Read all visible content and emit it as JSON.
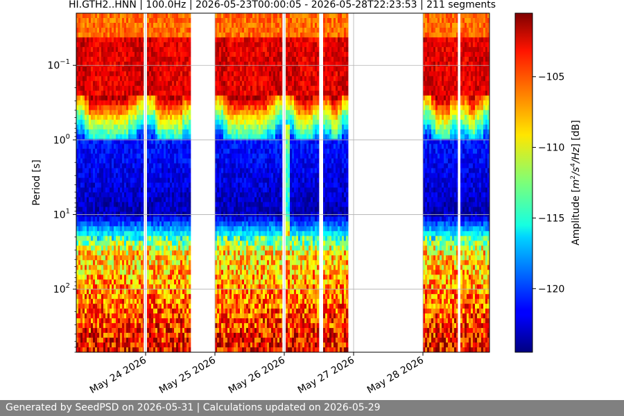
{
  "chart_data": {
    "type": "heatmap",
    "title": "HI.GTH2..HNN | 100.0Hz | 2026-05-23T00:00:05 - 2026-05-28T22:23:53 | 211 segments",
    "ylabel": "Period [s]",
    "y_scale": "log",
    "y_inverted": true,
    "ylim": [
      0.02,
      700
    ],
    "y_ticks": [
      {
        "value": 0.1,
        "base": "10",
        "exp": "−1"
      },
      {
        "value": 1,
        "base": "10",
        "exp": "0"
      },
      {
        "value": 10,
        "base": "10",
        "exp": "1"
      },
      {
        "value": 100,
        "base": "10",
        "exp": "2"
      }
    ],
    "x_ticks": [
      "May 24 2026",
      "May 25 2026",
      "May 26 2026",
      "May 27 2026",
      "May 28 2026"
    ],
    "xlim_days": [
      23.0,
      28.96
    ],
    "grid": true,
    "colormap": "jet",
    "colorbar": {
      "label": "Amplitude [m²/s⁴/Hz] [dB]",
      "label_plain": "Amplitude [",
      "label_unit_m": "m",
      "label_unit_sup1": "2",
      "label_unit_s": "/s",
      "label_unit_sup2": "4",
      "label_unit_hz": "/Hz",
      "label_end": "] [dB]",
      "range": [
        -124.5,
        -100.5
      ],
      "ticks": [
        {
          "value": -105,
          "label": "−105"
        },
        {
          "value": -110,
          "label": "−110"
        },
        {
          "value": -115,
          "label": "−115"
        },
        {
          "value": -120,
          "label": "−120"
        }
      ]
    },
    "data_segments_days": [
      [
        23.0,
        23.97
      ],
      [
        24.02,
        24.65
      ],
      [
        25.0,
        25.97
      ],
      [
        26.02,
        26.5
      ],
      [
        26.56,
        26.92
      ],
      [
        28.0,
        28.5
      ],
      [
        28.54,
        28.96
      ]
    ],
    "anomaly_days": [
      26.0,
      26.06
    ]
  },
  "footer": {
    "text": "Generated by SeedPSD on 2026-05-31 | Calculations updated on 2026-05-29"
  }
}
